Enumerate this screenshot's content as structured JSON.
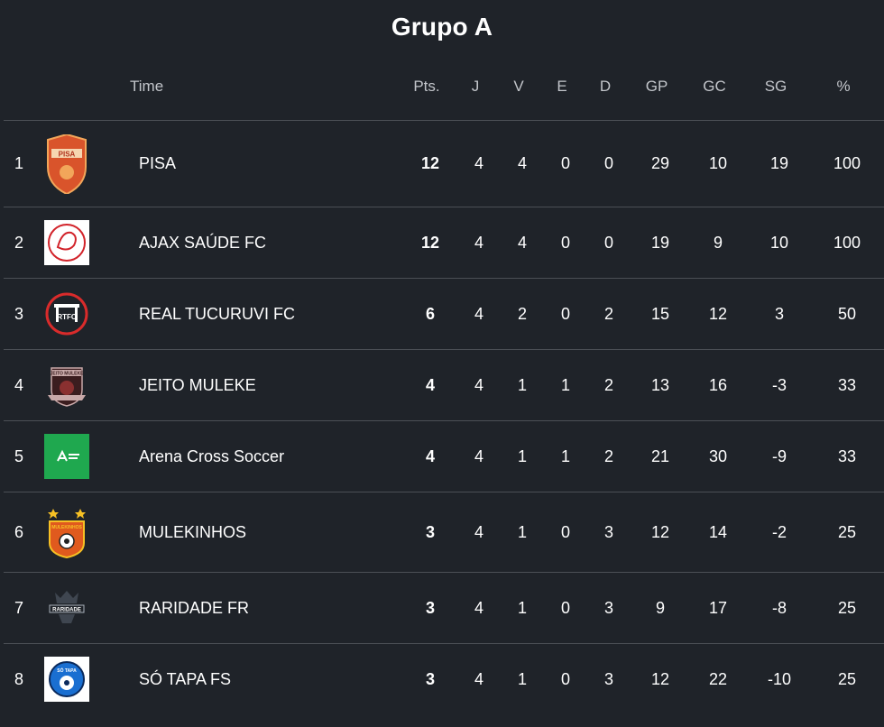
{
  "title": "Grupo A",
  "headers": {
    "time": "Time",
    "pts": "Pts.",
    "j": "J",
    "v": "V",
    "e": "E",
    "d": "D",
    "gp": "GP",
    "gc": "GC",
    "sg": "SG",
    "pct": "%"
  },
  "teams": [
    {
      "pos": "1",
      "name": "PISA",
      "pts": "12",
      "j": "4",
      "v": "4",
      "e": "0",
      "d": "0",
      "gp": "29",
      "gc": "10",
      "sg": "19",
      "pct": "100",
      "logo": "pisa-crest-icon",
      "logo_text": "PISA"
    },
    {
      "pos": "2",
      "name": "AJAX SAÚDE FC",
      "pts": "12",
      "j": "4",
      "v": "4",
      "e": "0",
      "d": "0",
      "gp": "19",
      "gc": "9",
      "sg": "10",
      "pct": "100",
      "logo": "ajax-crest-icon"
    },
    {
      "pos": "3",
      "name": "REAL TUCURUVI FC",
      "pts": "6",
      "j": "4",
      "v": "2",
      "e": "0",
      "d": "2",
      "gp": "15",
      "gc": "12",
      "sg": "3",
      "pct": "50",
      "logo": "real-tucuruvi-crest-icon",
      "logo_text": "RTFC"
    },
    {
      "pos": "4",
      "name": "JEITO MULEKE",
      "pts": "4",
      "j": "4",
      "v": "1",
      "e": "1",
      "d": "2",
      "gp": "13",
      "gc": "16",
      "sg": "-3",
      "pct": "33",
      "logo": "jeito-muleke-crest-icon",
      "logo_text": "JEITO MULEKE"
    },
    {
      "pos": "5",
      "name": "Arena Cross Soccer",
      "pts": "4",
      "j": "4",
      "v": "1",
      "e": "1",
      "d": "2",
      "gp": "21",
      "gc": "30",
      "sg": "-9",
      "pct": "33",
      "logo": "arena-cross-logo-icon"
    },
    {
      "pos": "6",
      "name": "MULEKINHOS",
      "pts": "3",
      "j": "4",
      "v": "1",
      "e": "0",
      "d": "3",
      "gp": "12",
      "gc": "14",
      "sg": "-2",
      "pct": "25",
      "logo": "mulekinhos-crest-icon",
      "logo_text": "MULEKINHOS"
    },
    {
      "pos": "7",
      "name": "RARIDADE FR",
      "pts": "3",
      "j": "4",
      "v": "1",
      "e": "0",
      "d": "3",
      "gp": "9",
      "gc": "17",
      "sg": "-8",
      "pct": "25",
      "logo": "raridade-crest-icon",
      "logo_text": "RARIDADE"
    },
    {
      "pos": "8",
      "name": "SÓ TAPA FS",
      "pts": "3",
      "j": "4",
      "v": "1",
      "e": "0",
      "d": "3",
      "gp": "12",
      "gc": "22",
      "sg": "-10",
      "pct": "25",
      "logo": "so-tapa-crest-icon",
      "logo_text": "SÓ TAPA"
    }
  ],
  "colors": {
    "background": "#1f2329",
    "divider": "#4b4f55",
    "header_text": "#c2c5ca",
    "text": "#ffffff"
  }
}
